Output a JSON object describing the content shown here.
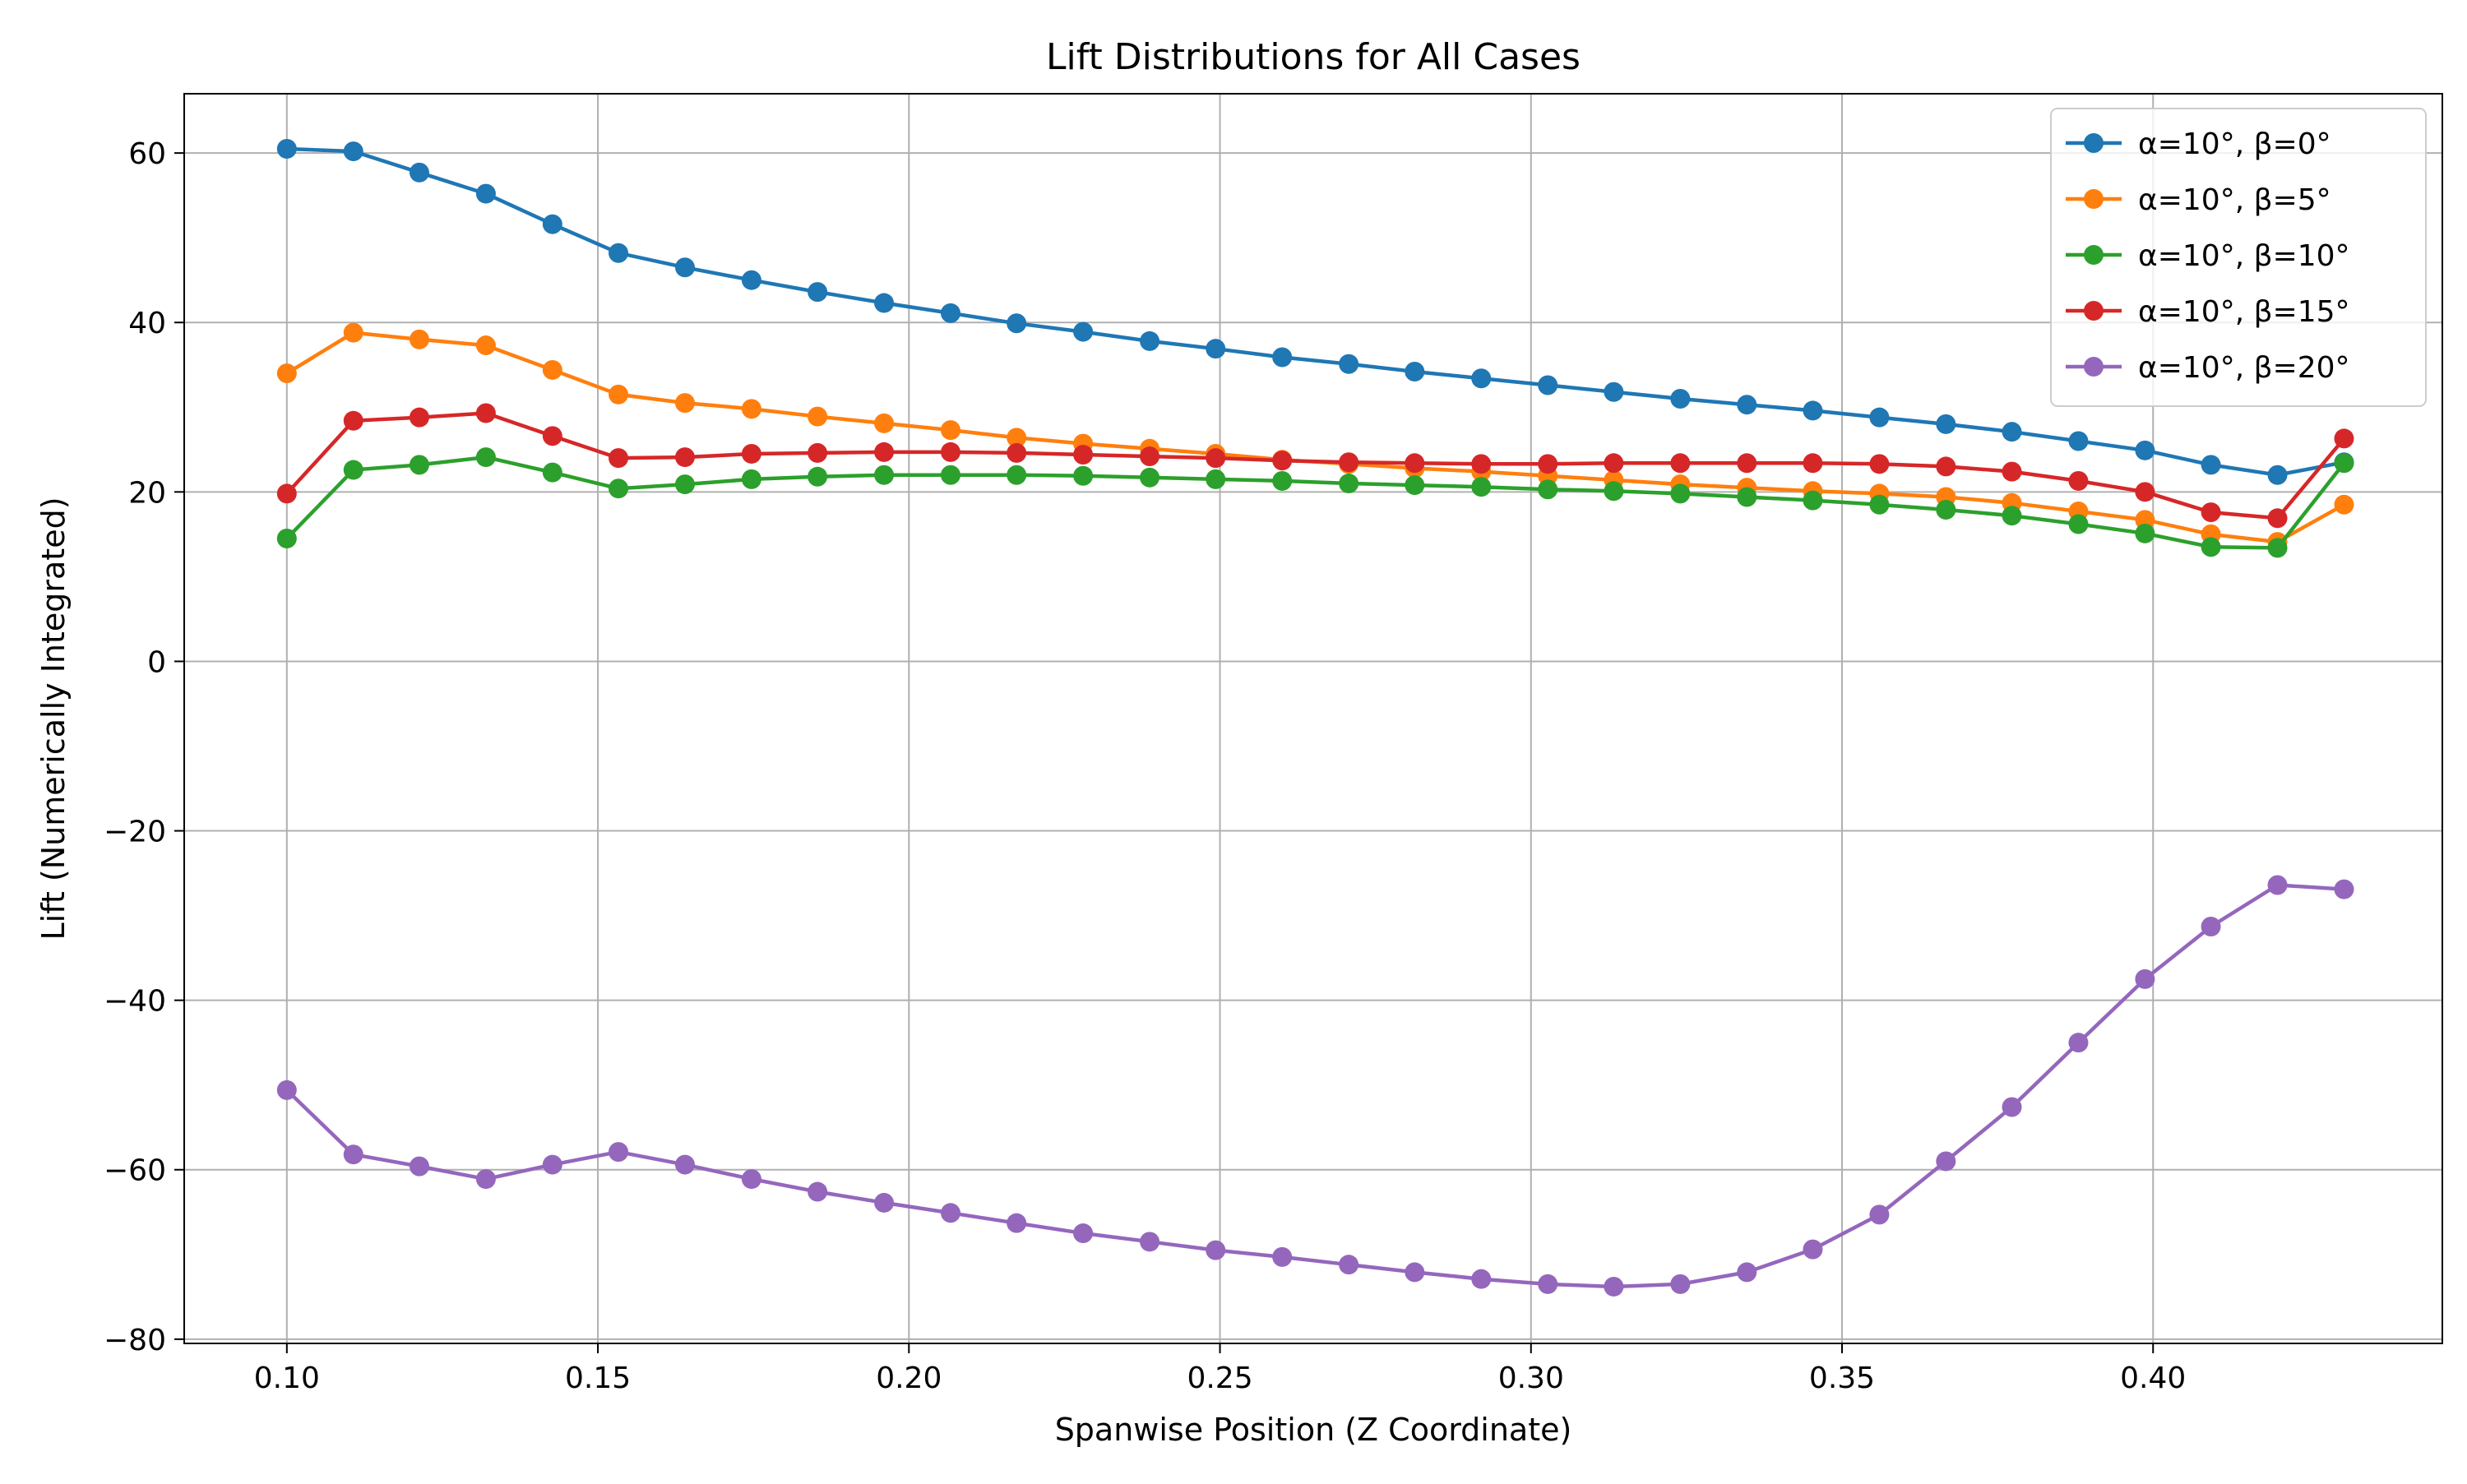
{
  "chart_data": {
    "type": "line",
    "title": "Lift Distributions for All Cases",
    "xlabel": "Spanwise Position (Z Coordinate)",
    "ylabel": "Lift (Numerically Integrated)",
    "xlim": [
      0.0835,
      0.4465
    ],
    "ylim": [
      -80.5,
      67.0
    ],
    "xticks": [
      0.1,
      0.15,
      0.2,
      0.25,
      0.3,
      0.35,
      0.4
    ],
    "xtick_labels": [
      "0.10",
      "0.15",
      "0.20",
      "0.25",
      "0.30",
      "0.35",
      "0.40"
    ],
    "yticks": [
      -80,
      -60,
      -40,
      -20,
      0,
      20,
      40,
      60
    ],
    "ytick_labels": [
      "−80",
      "−60",
      "−40",
      "−20",
      "0",
      "20",
      "40",
      "60"
    ],
    "grid": true,
    "legend_position": "top-right",
    "x": [
      0.1,
      0.1107,
      0.1213,
      0.132,
      0.1427,
      0.1533,
      0.164,
      0.1747,
      0.1853,
      0.196,
      0.2067,
      0.2173,
      0.228,
      0.2387,
      0.2493,
      0.26,
      0.2707,
      0.2813,
      0.292,
      0.3027,
      0.3133,
      0.324,
      0.3347,
      0.3453,
      0.356,
      0.3667,
      0.3773,
      0.388,
      0.3987,
      0.4093,
      0.42,
      0.4307
    ],
    "series": [
      {
        "name": "α=10°, β=0°",
        "color": "#1f77b4",
        "values": [
          60.5,
          60.2,
          57.7,
          55.2,
          51.6,
          48.2,
          46.5,
          45.0,
          43.6,
          42.3,
          41.1,
          39.9,
          38.9,
          37.8,
          36.9,
          35.9,
          35.1,
          34.2,
          33.4,
          32.6,
          31.8,
          31.0,
          30.3,
          29.6,
          28.8,
          28.0,
          27.1,
          26.0,
          24.9,
          23.2,
          22.0,
          23.5
        ]
      },
      {
        "name": "α=10°, β=5°",
        "color": "#ff7f0e",
        "values": [
          34.0,
          38.8,
          38.0,
          37.3,
          34.4,
          31.5,
          30.5,
          29.8,
          28.9,
          28.1,
          27.3,
          26.4,
          25.7,
          25.1,
          24.5,
          23.8,
          23.3,
          22.8,
          22.4,
          21.9,
          21.4,
          20.9,
          20.5,
          20.1,
          19.8,
          19.4,
          18.7,
          17.7,
          16.7,
          15.0,
          14.1,
          18.5
        ]
      },
      {
        "name": "α=10°, β=10°",
        "color": "#2ca02c",
        "values": [
          14.5,
          22.6,
          23.2,
          24.1,
          22.3,
          20.4,
          20.9,
          21.5,
          21.8,
          22.0,
          22.0,
          22.0,
          21.9,
          21.7,
          21.5,
          21.3,
          21.0,
          20.8,
          20.6,
          20.3,
          20.1,
          19.8,
          19.4,
          19.0,
          18.5,
          17.9,
          17.2,
          16.2,
          15.1,
          13.5,
          13.4,
          23.4
        ]
      },
      {
        "name": "α=10°, β=15°",
        "color": "#d62728",
        "values": [
          19.8,
          28.4,
          28.8,
          29.3,
          26.6,
          24.0,
          24.1,
          24.5,
          24.6,
          24.7,
          24.7,
          24.6,
          24.4,
          24.2,
          24.0,
          23.7,
          23.5,
          23.4,
          23.3,
          23.3,
          23.4,
          23.4,
          23.4,
          23.4,
          23.3,
          23.0,
          22.4,
          21.3,
          20.0,
          17.6,
          16.9,
          26.3
        ]
      },
      {
        "name": "α=10°, β=20°",
        "color": "#9467bd",
        "values": [
          -50.6,
          -58.2,
          -59.6,
          -61.1,
          -59.4,
          -57.9,
          -59.4,
          -61.1,
          -62.6,
          -63.9,
          -65.1,
          -66.3,
          -67.5,
          -68.5,
          -69.5,
          -70.3,
          -71.2,
          -72.1,
          -72.9,
          -73.5,
          -73.8,
          -73.5,
          -72.1,
          -69.4,
          -65.3,
          -59.0,
          -52.6,
          -45.0,
          -37.5,
          -31.3,
          -26.4,
          -26.9
        ]
      }
    ]
  }
}
